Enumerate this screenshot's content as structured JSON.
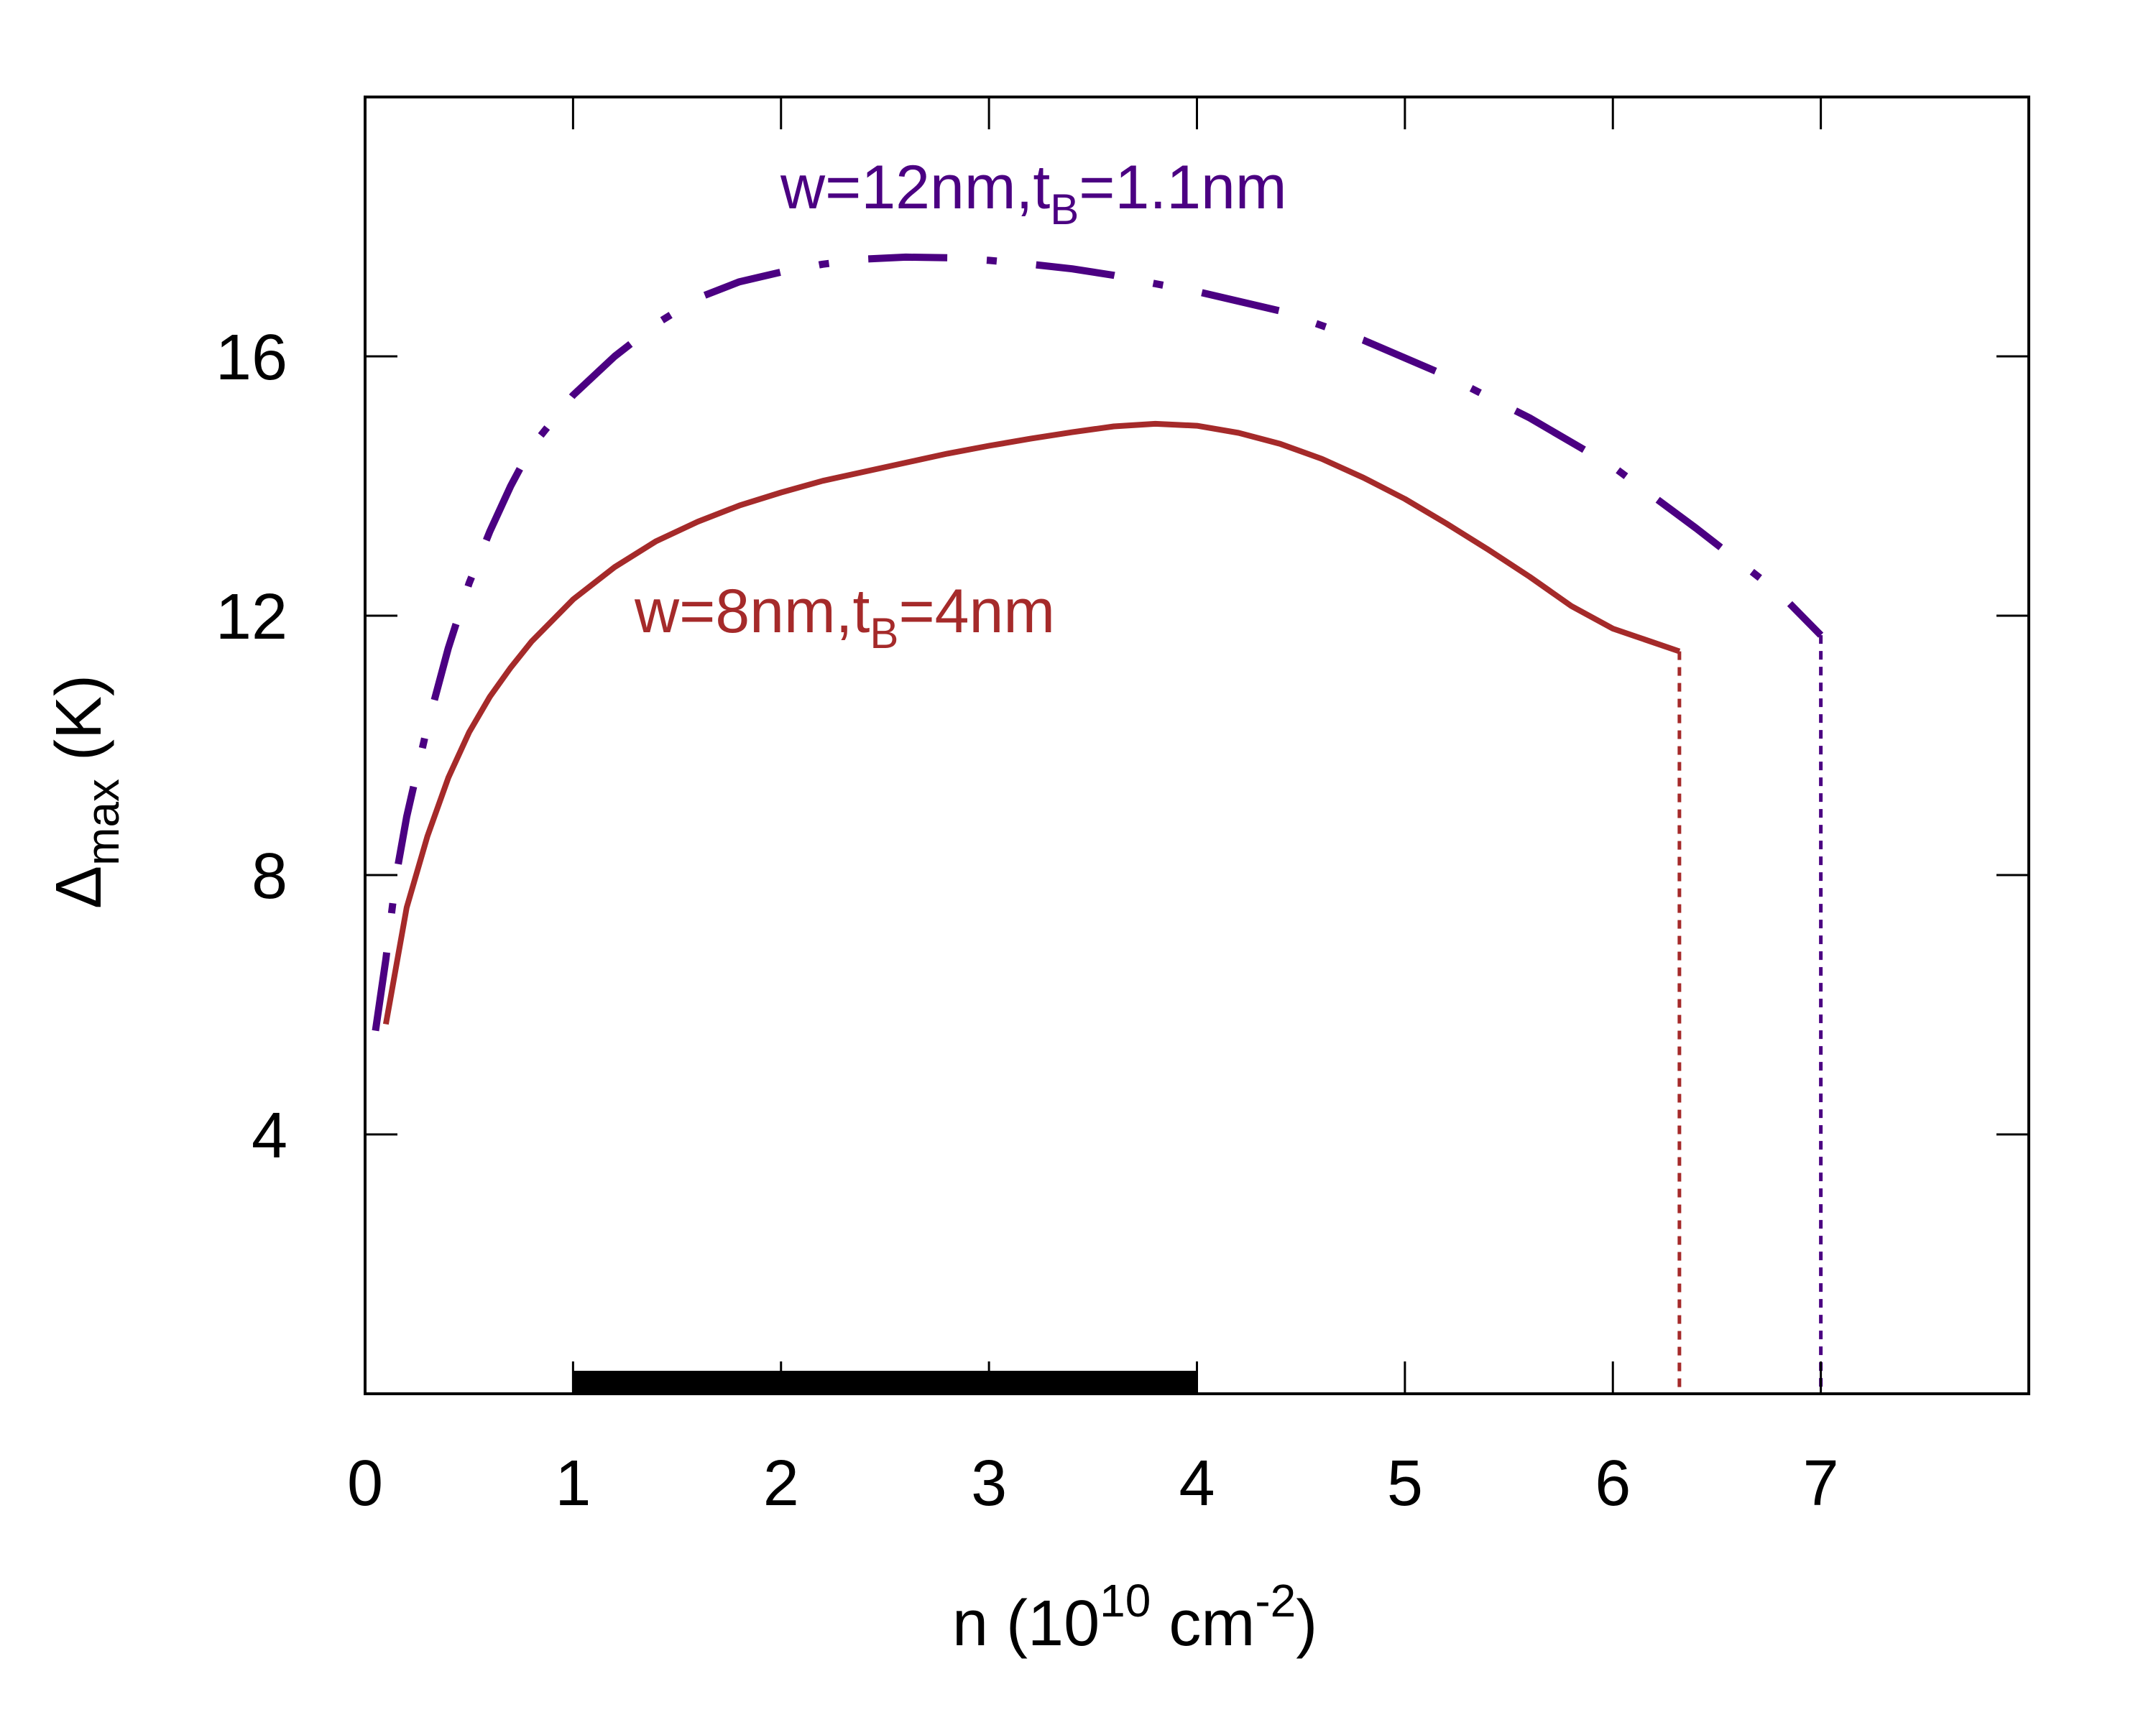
{
  "chart_data": {
    "type": "line",
    "xlabel": {
      "base": "n (10",
      "exp1": "10",
      "mid": " cm",
      "exp2": "-2",
      "end": ")"
    },
    "ylabel": {
      "symbol": "Δ",
      "sub": "max",
      "rest": " (K)"
    },
    "xlim": [
      0,
      8
    ],
    "ylim": [
      0,
      20
    ],
    "x_ticks": [
      0,
      1,
      2,
      3,
      4,
      5,
      6,
      7
    ],
    "y_ticks": [
      4,
      8,
      12,
      16
    ],
    "grid": false,
    "highlight_range": [
      1,
      4
    ],
    "colors": {
      "series1": "#4b0082",
      "series2": "#a52a2a",
      "axis": "#000000"
    },
    "series": [
      {
        "label": {
          "pre": "w=12nm,t",
          "sub": "B",
          "post": "=1.1nm"
        },
        "style": "dash-dot",
        "cutoff_x": 7.0,
        "points": [
          [
            0.05,
            5.6
          ],
          [
            0.1,
            6.7
          ],
          [
            0.15,
            8.0
          ],
          [
            0.2,
            8.9
          ],
          [
            0.3,
            10.3
          ],
          [
            0.4,
            11.5
          ],
          [
            0.5,
            12.5
          ],
          [
            0.6,
            13.3
          ],
          [
            0.7,
            14.0
          ],
          [
            0.8,
            14.6
          ],
          [
            1.0,
            15.4
          ],
          [
            1.2,
            16.0
          ],
          [
            1.4,
            16.5
          ],
          [
            1.6,
            16.9
          ],
          [
            1.8,
            17.15
          ],
          [
            2.0,
            17.3
          ],
          [
            2.2,
            17.42
          ],
          [
            2.4,
            17.5
          ],
          [
            2.6,
            17.53
          ],
          [
            2.8,
            17.52
          ],
          [
            3.0,
            17.48
          ],
          [
            3.2,
            17.42
          ],
          [
            3.4,
            17.35
          ],
          [
            3.6,
            17.25
          ],
          [
            3.8,
            17.12
          ],
          [
            4.0,
            17.0
          ],
          [
            4.4,
            16.7
          ],
          [
            4.8,
            16.25
          ],
          [
            5.2,
            15.7
          ],
          [
            5.6,
            15.05
          ],
          [
            6.0,
            14.3
          ],
          [
            6.4,
            13.35
          ],
          [
            6.8,
            12.35
          ],
          [
            7.0,
            11.7
          ]
        ]
      },
      {
        "label": {
          "pre": "w=8nm,t",
          "sub": "B",
          "post": "=4nm"
        },
        "style": "solid",
        "cutoff_x": 6.32,
        "points": [
          [
            0.1,
            5.7
          ],
          [
            0.15,
            6.6
          ],
          [
            0.2,
            7.5
          ],
          [
            0.3,
            8.6
          ],
          [
            0.4,
            9.5
          ],
          [
            0.5,
            10.2
          ],
          [
            0.6,
            10.75
          ],
          [
            0.7,
            11.2
          ],
          [
            0.8,
            11.6
          ],
          [
            1.0,
            12.25
          ],
          [
            1.2,
            12.75
          ],
          [
            1.4,
            13.15
          ],
          [
            1.6,
            13.45
          ],
          [
            1.8,
            13.7
          ],
          [
            2.0,
            13.9
          ],
          [
            2.2,
            14.08
          ],
          [
            2.4,
            14.22
          ],
          [
            2.6,
            14.36
          ],
          [
            2.8,
            14.5
          ],
          [
            3.0,
            14.62
          ],
          [
            3.2,
            14.73
          ],
          [
            3.4,
            14.83
          ],
          [
            3.6,
            14.92
          ],
          [
            3.8,
            14.96
          ],
          [
            4.0,
            14.93
          ],
          [
            4.2,
            14.82
          ],
          [
            4.4,
            14.65
          ],
          [
            4.6,
            14.42
          ],
          [
            4.8,
            14.13
          ],
          [
            5.0,
            13.8
          ],
          [
            5.2,
            13.42
          ],
          [
            5.4,
            13.02
          ],
          [
            5.6,
            12.6
          ],
          [
            5.8,
            12.15
          ],
          [
            6.0,
            11.8
          ],
          [
            6.32,
            11.45
          ]
        ]
      }
    ]
  }
}
